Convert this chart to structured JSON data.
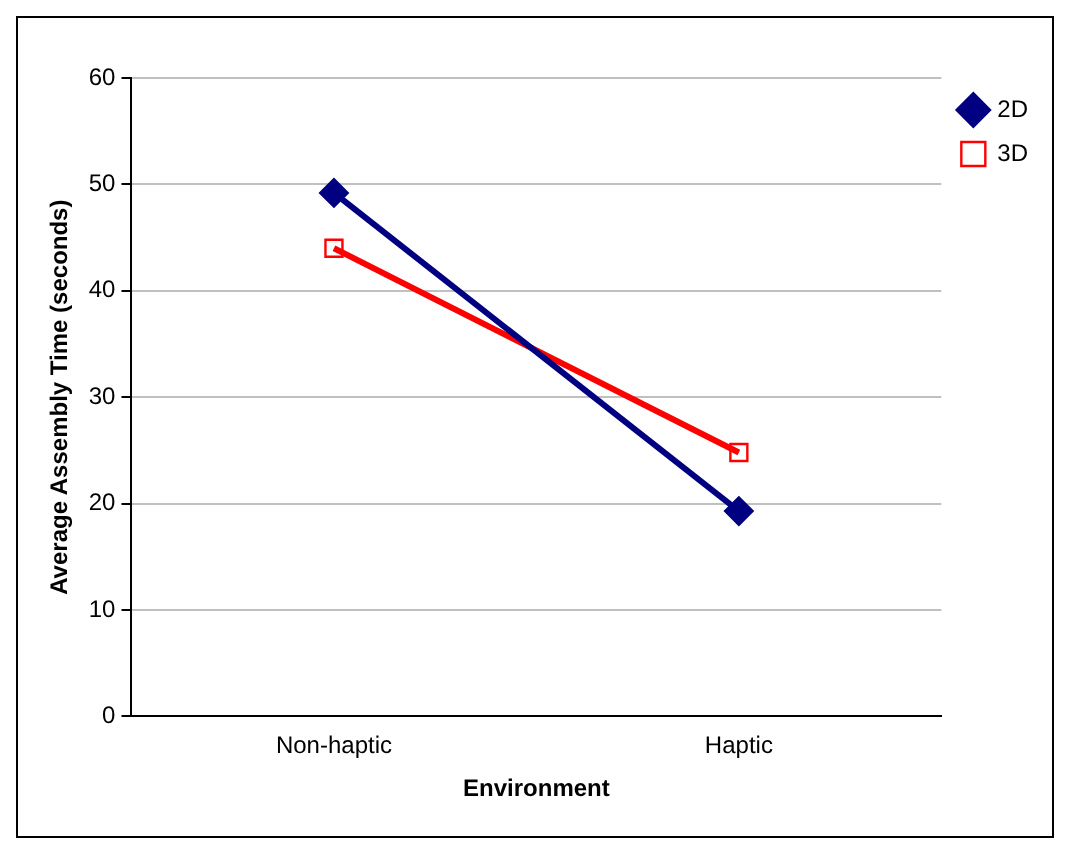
{
  "chart_data": {
    "type": "line",
    "xlabel": "Environment",
    "ylabel": "Average Assembly Time (seconds)",
    "categories": [
      "Non-haptic",
      "Haptic"
    ],
    "series": [
      {
        "name": "2D",
        "color": "#000080",
        "values": [
          49.2,
          19.3
        ],
        "marker": "diamond"
      },
      {
        "name": "3D",
        "color": "#ff0000",
        "values": [
          44,
          24.8
        ],
        "marker": "square"
      }
    ],
    "ylim": [
      0,
      60
    ],
    "yticks": [
      0,
      10,
      20,
      30,
      40,
      50,
      60
    ],
    "grid": "y",
    "legend": "top right",
    "line_style": "solid"
  }
}
